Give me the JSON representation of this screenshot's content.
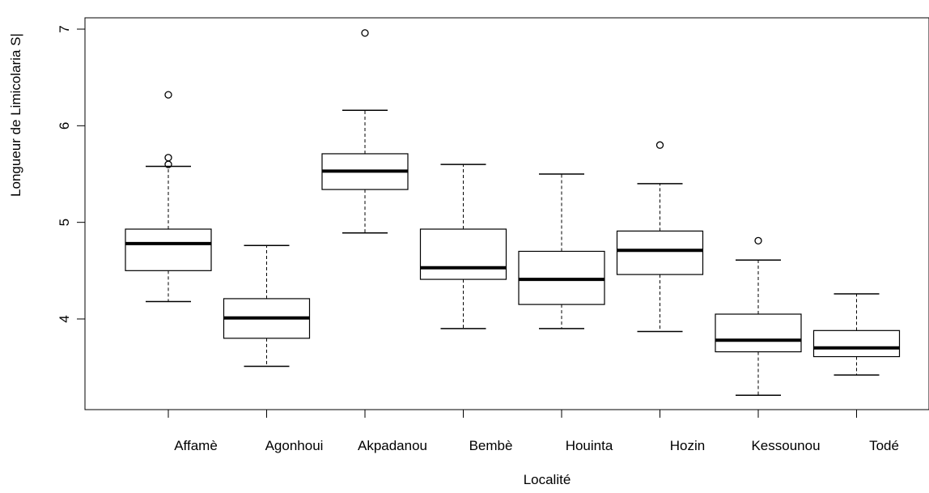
{
  "chart_data": {
    "type": "boxplot",
    "title": "",
    "xlabel": "Localité",
    "ylabel": "Longueur de Limicolaria S|",
    "ylim": [
      3.05,
      7.1
    ],
    "yticks": [
      4,
      5,
      6,
      7
    ],
    "grid": false,
    "categories": [
      "Affamè",
      "Agonhoui",
      "Akpadanou",
      "Bembè",
      "Houinta",
      "Hozin",
      "Kessounou",
      "Todé"
    ],
    "boxes": [
      {
        "category": "Affamè",
        "whisker_low": 4.18,
        "q1": 4.5,
        "median": 4.78,
        "q3": 4.93,
        "whisker_high": 5.58,
        "outliers": [
          5.6,
          5.67,
          6.32
        ]
      },
      {
        "category": "Agonhoui",
        "whisker_low": 3.51,
        "q1": 3.8,
        "median": 4.01,
        "q3": 4.21,
        "whisker_high": 4.76,
        "outliers": []
      },
      {
        "category": "Akpadanou",
        "whisker_low": 4.89,
        "q1": 5.34,
        "median": 5.53,
        "q3": 5.71,
        "whisker_high": 6.16,
        "outliers": [
          6.96
        ]
      },
      {
        "category": "Bembè",
        "whisker_low": 3.9,
        "q1": 4.41,
        "median": 4.53,
        "q3": 4.93,
        "whisker_high": 5.6,
        "outliers": []
      },
      {
        "category": "Houinta",
        "whisker_low": 3.9,
        "q1": 4.15,
        "median": 4.41,
        "q3": 4.7,
        "whisker_high": 5.5,
        "outliers": []
      },
      {
        "category": "Hozin",
        "whisker_low": 3.87,
        "q1": 4.46,
        "median": 4.71,
        "q3": 4.91,
        "whisker_high": 5.4,
        "outliers": [
          5.8
        ]
      },
      {
        "category": "Kessounou",
        "whisker_low": 3.21,
        "q1": 3.66,
        "median": 3.78,
        "q3": 4.05,
        "whisker_high": 4.61,
        "outliers": [
          4.81
        ]
      },
      {
        "category": "Todé",
        "whisker_low": 3.42,
        "q1": 3.61,
        "median": 3.7,
        "q3": 3.88,
        "whisker_high": 4.26,
        "outliers": []
      }
    ]
  }
}
